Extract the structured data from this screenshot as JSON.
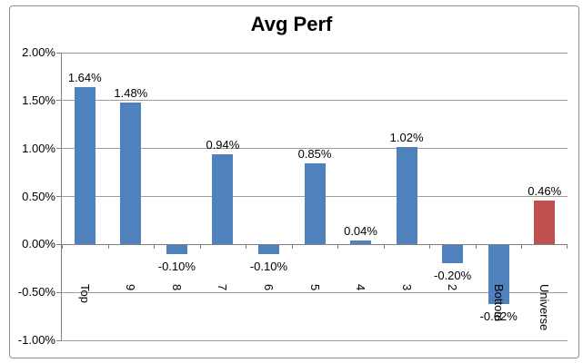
{
  "chart_data": {
    "type": "bar",
    "title": "Avg Perf",
    "categories": [
      "Top",
      "9",
      "8",
      "7",
      "6",
      "5",
      "4",
      "3",
      "2",
      "Bottom",
      "Universe"
    ],
    "series": [
      {
        "name": "Avg Perf",
        "values": [
          1.64,
          1.48,
          -0.1,
          0.94,
          -0.1,
          0.85,
          0.04,
          1.02,
          -0.2,
          -0.62,
          0.46
        ]
      }
    ],
    "data_labels": [
      "1.64%",
      "1.48%",
      "-0.10%",
      "0.94%",
      "-0.10%",
      "0.85%",
      "0.04%",
      "1.02%",
      "-0.20%",
      "-0.62%",
      "0.46%"
    ],
    "bar_colors": [
      "#4f81bd",
      "#4f81bd",
      "#4f81bd",
      "#4f81bd",
      "#4f81bd",
      "#4f81bd",
      "#4f81bd",
      "#4f81bd",
      "#4f81bd",
      "#4f81bd",
      "#c0504d"
    ],
    "xlabel": "",
    "ylabel": "",
    "y_ticks": [
      "2.00%",
      "1.50%",
      "1.00%",
      "0.50%",
      "0.00%",
      "-0.50%",
      "-1.00%"
    ],
    "ylim": [
      -1.0,
      2.0
    ],
    "y_step": 0.5,
    "grid": true,
    "legend": "none",
    "category_label_rotation_deg": 90
  },
  "colors": {
    "bar_default": "#4f81bd",
    "bar_highlight": "#c0504d",
    "gridline": "#9d9d9d",
    "axis": "#808080",
    "chart_border": "#8e8e8e",
    "text": "#000000"
  }
}
